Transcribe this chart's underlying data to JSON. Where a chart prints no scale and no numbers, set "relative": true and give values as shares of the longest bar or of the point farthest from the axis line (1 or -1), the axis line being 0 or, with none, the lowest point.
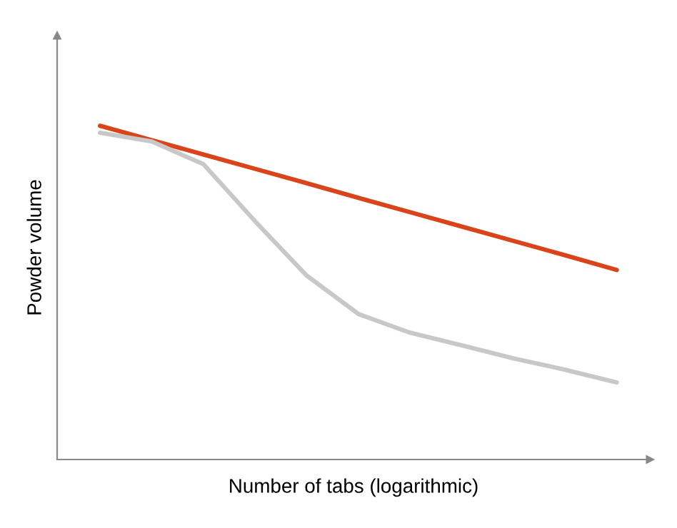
{
  "chart_data": {
    "type": "line",
    "relative": true,
    "xlabel": "Number of tabs (logarithmic)",
    "ylabel": "Powder volume",
    "categories": [
      null,
      null,
      null,
      null,
      null,
      null,
      null,
      null,
      null,
      null,
      null
    ],
    "series": [
      {
        "color": "#d9441b",
        "values": [
          1,
          0.957,
          0.914,
          0.871,
          0.828,
          0.784,
          0.741,
          0.698,
          0.655,
          0.612,
          0.568
        ]
      },
      {
        "color": "#c8c8c8",
        "values": [
          0.979,
          0.953,
          0.885,
          0.714,
          0.551,
          0.436,
          0.38,
          0.342,
          0.303,
          0.269,
          0.231
        ]
      }
    ],
    "grid": false,
    "legend": false,
    "marker": "none",
    "line_style": "solid"
  }
}
